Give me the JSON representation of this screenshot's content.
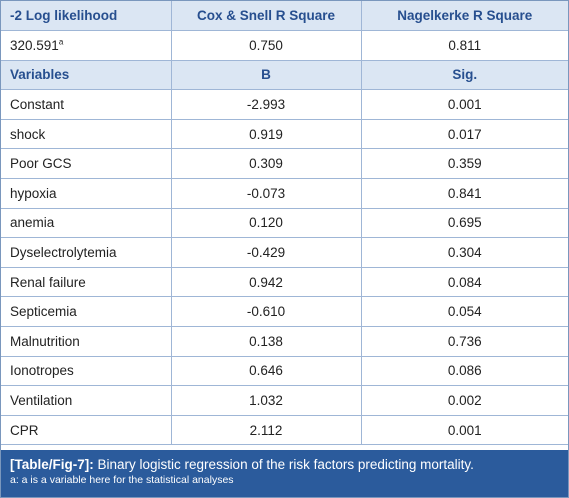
{
  "model_summary": {
    "headers": [
      "-2 Log likelihood",
      "Cox & Snell R Square",
      "Nagelkerke R Square"
    ],
    "log_likelihood": "320.591",
    "log_likelihood_sup": "a",
    "cox_snell": "0.750",
    "nagelkerke": "0.811"
  },
  "coefficients": {
    "headers": [
      "Variables",
      "B",
      "Sig."
    ],
    "rows": [
      {
        "variable": "Constant",
        "b": "-2.993",
        "sig": "0.001"
      },
      {
        "variable": "shock",
        "b": "0.919",
        "sig": "0.017"
      },
      {
        "variable": "Poor GCS",
        "b": "0.309",
        "sig": "0.359"
      },
      {
        "variable": "hypoxia",
        "b": "-0.073",
        "sig": "0.841"
      },
      {
        "variable": "anemia",
        "b": "0.120",
        "sig": "0.695"
      },
      {
        "variable": "Dyselectrolytemia",
        "b": "-0.429",
        "sig": "0.304"
      },
      {
        "variable": "Renal failure",
        "b": "0.942",
        "sig": "0.084"
      },
      {
        "variable": "Septicemia",
        "b": "-0.610",
        "sig": "0.054"
      },
      {
        "variable": "Malnutrition",
        "b": "0.138",
        "sig": "0.736"
      },
      {
        "variable": "Ionotropes",
        "b": "0.646",
        "sig": "0.086"
      },
      {
        "variable": "Ventilation",
        "b": "1.032",
        "sig": "0.002"
      },
      {
        "variable": "CPR",
        "b": "2.112",
        "sig": "0.001"
      }
    ]
  },
  "caption": {
    "label": "[Table/Fig-7]:",
    "text": "Binary logistic regression of the risk factors predicting mortality.",
    "note": "a: a is a variable here for the statistical analyses"
  },
  "colors": {
    "header_bg": "#dbe6f3",
    "header_text": "#274f8f",
    "caption_bg": "#2b5b9c",
    "border": "#9fb6d6"
  }
}
